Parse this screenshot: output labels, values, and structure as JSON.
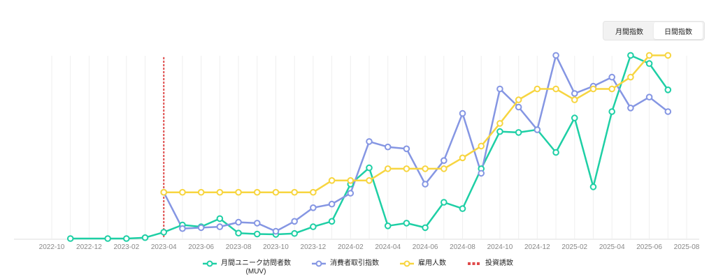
{
  "toggle": {
    "monthly_label": "月間指数",
    "daily_label": "日間指数"
  },
  "chart_data": {
    "type": "line",
    "title": "",
    "xlabel": "",
    "ylabel": "",
    "ylim": [
      0,
      100
    ],
    "grid": "vertical",
    "legend_position": "bottom",
    "x_ticks": [
      "2022-10",
      "2022-12",
      "2023-02",
      "2023-04",
      "2023-06",
      "2023-08",
      "2023-10",
      "2023-12",
      "2024-02",
      "2024-04",
      "2024-06",
      "2024-08",
      "2024-10",
      "2024-12",
      "2025-02",
      "2025-04",
      "2025-06",
      "2025-08"
    ],
    "series": [
      {
        "name": "月間ユニーク訪問者数",
        "name_line2": "(MUV)",
        "color": "#1ecfa5",
        "x": [
          "2022-11",
          "2023-01",
          "2023-02",
          "2023-03",
          "2023-04",
          "2023-05",
          "2023-06",
          "2023-07",
          "2023-08",
          "2023-09",
          "2023-10",
          "2023-11",
          "2023-12",
          "2024-01",
          "2024-02",
          "2024-03",
          "2024-04",
          "2024-05",
          "2024-06",
          "2024-07",
          "2024-08",
          "2024-09",
          "2024-10",
          "2024-11",
          "2024-12",
          "2025-01",
          "2025-02",
          "2025-03",
          "2025-04",
          "2025-05",
          "2025-06",
          "2025-07"
        ],
        "values": [
          0,
          0,
          0,
          0.5,
          3.5,
          7.5,
          6.5,
          11,
          3,
          2.5,
          2.3,
          2.8,
          6.5,
          9.5,
          30,
          39,
          7,
          8.5,
          6,
          20,
          16.5,
          38.5,
          59,
          58.5,
          60,
          47.5,
          66.5,
          28.5,
          70,
          101,
          96.5,
          82
        ]
      },
      {
        "name": "消費者取引指数",
        "color": "#8596e3",
        "x": [
          "2023-04",
          "2023-05",
          "2023-06",
          "2023-07",
          "2023-08",
          "2023-09",
          "2023-10",
          "2023-11",
          "2023-12",
          "2024-01",
          "2024-02",
          "2024-03",
          "2024-04",
          "2024-05",
          "2024-06",
          "2024-07",
          "2024-08",
          "2024-09",
          "2024-10",
          "2024-11",
          "2024-12",
          "2025-01",
          "2025-02",
          "2025-03",
          "2025-04",
          "2025-05",
          "2025-06",
          "2025-07"
        ],
        "values": [
          25.5,
          5.5,
          6,
          6.5,
          9,
          8.5,
          4,
          9.5,
          17,
          19,
          25,
          53.5,
          50.5,
          49.5,
          30,
          43,
          69,
          36,
          82.5,
          72.5,
          60,
          101,
          80,
          84,
          89,
          72,
          78,
          70
        ]
      },
      {
        "name": "雇用人数",
        "color": "#f7d540",
        "x": [
          "2023-04",
          "2023-05",
          "2023-06",
          "2023-07",
          "2023-08",
          "2023-09",
          "2023-10",
          "2023-11",
          "2023-12",
          "2024-01",
          "2024-02",
          "2024-03",
          "2024-04",
          "2024-05",
          "2024-06",
          "2024-07",
          "2024-08",
          "2024-09",
          "2024-10",
          "2024-11",
          "2024-12",
          "2025-01",
          "2025-02",
          "2025-03",
          "2025-04",
          "2025-05",
          "2025-06",
          "2025-07"
        ],
        "values": [
          25.5,
          25.5,
          25.5,
          25.5,
          25.5,
          25.5,
          25.5,
          25.5,
          25.5,
          32,
          32,
          32,
          38.5,
          38.5,
          38.5,
          38.5,
          44.5,
          51,
          63.5,
          76.5,
          82.5,
          82.5,
          76.5,
          82.5,
          82.5,
          89,
          101,
          101
        ]
      },
      {
        "name": "投資誘致",
        "color": "#e04b4b",
        "type": "vertical-marker",
        "x": [
          "2023-04"
        ]
      }
    ]
  }
}
